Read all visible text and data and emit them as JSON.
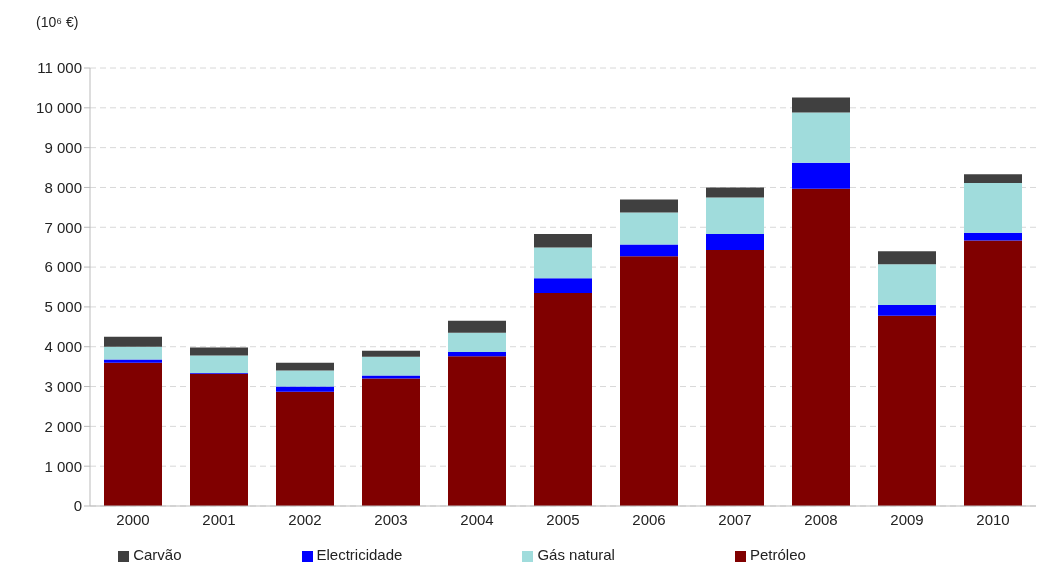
{
  "chart_data": {
    "type": "bar",
    "stacked": true,
    "ylabel": "(10⁶ €)",
    "categories": [
      "2000",
      "2001",
      "2002",
      "2003",
      "2004",
      "2005",
      "2006",
      "2007",
      "2008",
      "2009",
      "2010"
    ],
    "series": [
      {
        "name": "Petróleo",
        "color": "#800000",
        "values": [
          3600,
          3320,
          2870,
          3200,
          3760,
          5350,
          6270,
          6430,
          7970,
          4780,
          6670
        ]
      },
      {
        "name": "Electricidade",
        "color": "#0000ff",
        "values": [
          80,
          20,
          130,
          80,
          110,
          370,
          300,
          400,
          650,
          270,
          190
        ]
      },
      {
        "name": "Gás natural",
        "color": "#a0dcdc",
        "values": [
          320,
          440,
          400,
          470,
          480,
          770,
          800,
          920,
          1260,
          1020,
          1250
        ]
      },
      {
        "name": "Carvão",
        "color": "#404040",
        "values": [
          250,
          200,
          200,
          150,
          300,
          340,
          330,
          250,
          380,
          330,
          220
        ]
      }
    ],
    "ylim": [
      0,
      11000
    ],
    "yticks": [
      0,
      {
        "value": 1000,
        "label": "1 000"
      },
      {
        "value": 2000,
        "label": "2 000"
      },
      {
        "value": 3000,
        "label": "3 000"
      },
      {
        "value": 4000,
        "label": "4 000"
      },
      {
        "value": 5000,
        "label": "5 000"
      },
      {
        "value": 6000,
        "label": "6 000"
      },
      {
        "value": 7000,
        "label": "7 000"
      },
      {
        "value": 8000,
        "label": "8 000"
      },
      {
        "value": 9000,
        "label": "9 000"
      },
      {
        "value": 10000,
        "label": "10 000"
      },
      {
        "value": 11000,
        "label": "11 000"
      }
    ],
    "grid": "y",
    "legend": "bottom"
  }
}
